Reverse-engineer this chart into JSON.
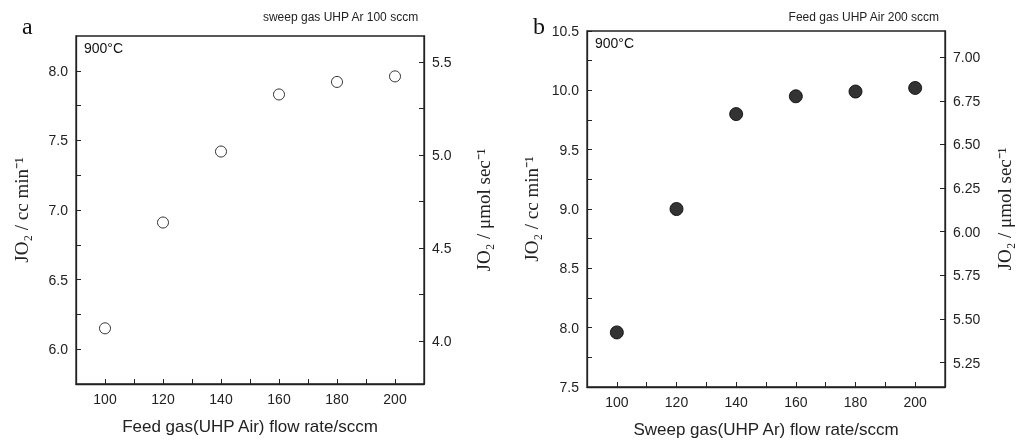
{
  "chart_data": [
    {
      "type": "scatter",
      "title": "sweep gas UHP Ar 100 sccm",
      "xlabel": "Feed gas(UHP Air) flow rate/sccm",
      "ylabel": "JO₂ / cc min⁻¹",
      "y2label": "JO₂ / μmol sec⁻¹",
      "annotations": [
        "a",
        "900°C"
      ],
      "x": [
        100,
        120,
        140,
        160,
        180,
        200
      ],
      "series": [
        {
          "color": "#ffffff",
          "values": [
            6.15,
            6.91,
            7.42,
            7.83,
            7.92,
            7.96
          ]
        }
      ],
      "xlim": [
        90,
        210
      ],
      "xticks": [
        100,
        {
          "value": 110,
          "label": null
        },
        120,
        {
          "value": 130,
          "label": null
        },
        140,
        {
          "value": 150,
          "label": null
        },
        160,
        {
          "value": 170,
          "label": null
        },
        180,
        {
          "value": 190,
          "label": null
        },
        200
      ],
      "ylim": [
        5.75,
        8.25
      ],
      "yticks": [
        {
          "value": 6.0,
          "label": "6.0"
        },
        {
          "value": 6.25,
          "label": null
        },
        {
          "value": 6.5,
          "label": "6.5"
        },
        {
          "value": 6.75,
          "label": null
        },
        {
          "value": 7.0,
          "label": "7.0"
        },
        {
          "value": 7.25,
          "label": null
        },
        {
          "value": 7.5,
          "label": "7.5"
        },
        {
          "value": 7.75,
          "label": null
        },
        {
          "value": 8.0,
          "label": "8.0"
        }
      ],
      "y2lim": [
        3.77,
        5.64
      ],
      "y2ticks": [
        {
          "value": 4.0,
          "label": "4.0"
        },
        {
          "value": 4.25,
          "label": null
        },
        {
          "value": 4.5,
          "label": "4.5"
        },
        {
          "value": 4.75,
          "label": null
        },
        {
          "value": 5.0,
          "label": "5.0"
        },
        {
          "value": 5.25,
          "label": null
        },
        {
          "value": 5.5,
          "label": "5.5"
        }
      ],
      "marker": "circle",
      "grid": false
    },
    {
      "type": "scatter",
      "title": "Feed gas UHP Air 200 sccm",
      "xlabel": "Sweep gas(UHP Ar) flow rate/sccm",
      "ylabel": "JO₂ / cc min⁻¹",
      "y2label": "JO₂ / μmol sec⁻¹",
      "annotations": [
        "b",
        "900°C"
      ],
      "x": [
        100,
        120,
        140,
        160,
        180,
        200
      ],
      "series": [
        {
          "color": "#000000",
          "values": [
            7.96,
            9.0,
            9.8,
            9.95,
            9.99,
            10.02
          ]
        }
      ],
      "xlim": [
        90,
        210
      ],
      "xticks": [
        100,
        {
          "value": 110,
          "label": null
        },
        120,
        {
          "value": 130,
          "label": null
        },
        140,
        {
          "value": 150,
          "label": null
        },
        160,
        {
          "value": 170,
          "label": null
        },
        180,
        {
          "value": 190,
          "label": null
        },
        200
      ],
      "ylim": [
        7.5,
        10.5
      ],
      "yticks": [
        {
          "value": 7.5,
          "label": "7.5"
        },
        {
          "value": 7.75,
          "label": null
        },
        {
          "value": 8.0,
          "label": "8.0"
        },
        {
          "value": 8.25,
          "label": null
        },
        {
          "value": 8.5,
          "label": "8.5"
        },
        {
          "value": 8.75,
          "label": null
        },
        {
          "value": 9.0,
          "label": "9.0"
        },
        {
          "value": 9.25,
          "label": null
        },
        {
          "value": 9.5,
          "label": "9.5"
        },
        {
          "value": 9.75,
          "label": null
        },
        {
          "value": 10.0,
          "label": "10.0"
        },
        {
          "value": 10.25,
          "label": null
        },
        {
          "value": 10.5,
          "label": "10.5"
        }
      ],
      "y2lim": [
        5.11,
        7.15
      ],
      "y2ticks": [
        {
          "value": 5.25,
          "label": "5.25"
        },
        {
          "value": 5.5,
          "label": "5.50"
        },
        {
          "value": 5.75,
          "label": "5.75"
        },
        {
          "value": 6.0,
          "label": "6.00"
        },
        {
          "value": 6.25,
          "label": "6.25"
        },
        {
          "value": 6.5,
          "label": "6.50"
        },
        {
          "value": 6.75,
          "label": "6.75"
        },
        {
          "value": 7.0,
          "label": "7.00"
        }
      ],
      "marker": "circle",
      "grid": false
    }
  ]
}
